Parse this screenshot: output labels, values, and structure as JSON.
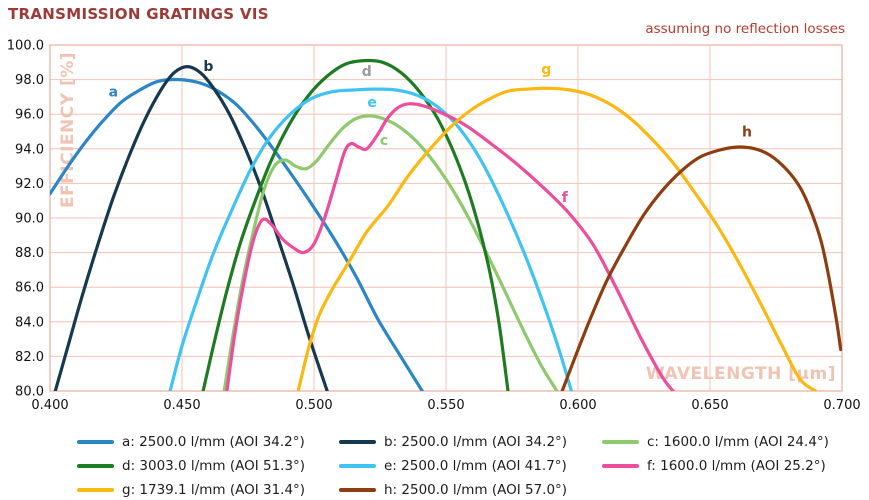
{
  "header": {
    "title": "TRANSMISSION GRATINGS VIS",
    "annotation": "assuming no reflection losses"
  },
  "colors": {
    "title": "#9d3a35",
    "annotation": "#b73c2e",
    "grid": "#f3c2b2",
    "plot_border": "#edb4a1",
    "axis_label": "#f0c3b3",
    "tick_text": "#111111",
    "background": "#ffffff"
  },
  "chart_data": {
    "type": "line",
    "title": "TRANSMISSION GRATINGS VIS",
    "annotation": "assuming no reflection losses",
    "xlabel": "WAVELENGTH [µm]",
    "ylabel": "EFFICIENCY [%]",
    "xlim": [
      0.4,
      0.7
    ],
    "ylim": [
      80.0,
      100.0
    ],
    "x_ticks": [
      0.4,
      0.45,
      0.5,
      0.55,
      0.6,
      0.65,
      0.7
    ],
    "y_ticks": [
      80.0,
      82.0,
      84.0,
      86.0,
      88.0,
      90.0,
      92.0,
      94.0,
      96.0,
      98.0,
      100.0
    ],
    "grid": true,
    "legend_position": "bottom",
    "series": [
      {
        "letter": "a",
        "name": "a: 2500.0 l/mm (AOI 34.2°)",
        "color": "#2b86c5",
        "label_at": [
          0.424,
          97.3
        ],
        "points": [
          [
            0.4,
            91.4
          ],
          [
            0.406,
            92.8
          ],
          [
            0.413,
            94.3
          ],
          [
            0.42,
            95.6
          ],
          [
            0.427,
            96.7
          ],
          [
            0.434,
            97.4
          ],
          [
            0.441,
            97.9
          ],
          [
            0.449,
            98.0
          ],
          [
            0.457,
            97.8
          ],
          [
            0.464,
            97.3
          ],
          [
            0.471,
            96.5
          ],
          [
            0.478,
            95.3
          ],
          [
            0.485,
            93.9
          ],
          [
            0.492,
            92.4
          ],
          [
            0.5,
            90.6
          ],
          [
            0.508,
            88.7
          ],
          [
            0.516,
            86.6
          ],
          [
            0.524,
            84.2
          ],
          [
            0.532,
            82.2
          ],
          [
            0.541,
            80.0
          ]
        ]
      },
      {
        "letter": "b",
        "name": "b: 2500.0 l/mm (AOI 34.2°)",
        "color": "#16394f",
        "label_at": [
          0.46,
          98.8
        ],
        "points": [
          [
            0.402,
            80.0
          ],
          [
            0.407,
            82.7
          ],
          [
            0.412,
            85.4
          ],
          [
            0.418,
            88.4
          ],
          [
            0.424,
            91.2
          ],
          [
            0.43,
            93.6
          ],
          [
            0.436,
            95.7
          ],
          [
            0.442,
            97.4
          ],
          [
            0.447,
            98.4
          ],
          [
            0.452,
            98.75
          ],
          [
            0.457,
            98.4
          ],
          [
            0.462,
            97.5
          ],
          [
            0.468,
            96.0
          ],
          [
            0.474,
            94.0
          ],
          [
            0.48,
            91.7
          ],
          [
            0.486,
            89.0
          ],
          [
            0.492,
            86.2
          ],
          [
            0.498,
            83.2
          ],
          [
            0.505,
            80.0
          ]
        ]
      },
      {
        "letter": "c",
        "name": "c: 1600.0 l/mm (AOI 24.4°)",
        "color": "#8fc96e",
        "label_at": [
          0.5265,
          94.5
        ],
        "points": [
          [
            0.466,
            80.0
          ],
          [
            0.4695,
            83.4
          ],
          [
            0.473,
            86.4
          ],
          [
            0.477,
            89.2
          ],
          [
            0.481,
            91.6
          ],
          [
            0.485,
            93.0
          ],
          [
            0.489,
            93.35
          ],
          [
            0.493,
            93.0
          ],
          [
            0.497,
            92.85
          ],
          [
            0.501,
            93.3
          ],
          [
            0.506,
            94.3
          ],
          [
            0.511,
            95.2
          ],
          [
            0.516,
            95.75
          ],
          [
            0.521,
            95.9
          ],
          [
            0.526,
            95.75
          ],
          [
            0.532,
            95.3
          ],
          [
            0.539,
            94.4
          ],
          [
            0.547,
            92.9
          ],
          [
            0.555,
            91.0
          ],
          [
            0.563,
            88.7
          ],
          [
            0.571,
            86.2
          ],
          [
            0.579,
            83.6
          ],
          [
            0.586,
            81.5
          ],
          [
            0.592,
            80.0
          ]
        ]
      },
      {
        "letter": "d",
        "name": "d: 3003.0 l/mm (AOI 51.3°)",
        "color": "#1d7b22",
        "label_color": "#9a9a9a",
        "label_at": [
          0.52,
          98.5
        ],
        "points": [
          [
            0.458,
            80.0
          ],
          [
            0.4625,
            83.0
          ],
          [
            0.467,
            85.8
          ],
          [
            0.472,
            88.5
          ],
          [
            0.478,
            91.1
          ],
          [
            0.484,
            93.4
          ],
          [
            0.491,
            95.5
          ],
          [
            0.498,
            97.1
          ],
          [
            0.505,
            98.2
          ],
          [
            0.512,
            98.9
          ],
          [
            0.519,
            99.1
          ],
          [
            0.526,
            99.0
          ],
          [
            0.533,
            98.4
          ],
          [
            0.54,
            97.3
          ],
          [
            0.547,
            95.7
          ],
          [
            0.554,
            93.4
          ],
          [
            0.56,
            90.8
          ],
          [
            0.566,
            87.3
          ],
          [
            0.57,
            84.0
          ],
          [
            0.5735,
            80.0
          ]
        ]
      },
      {
        "letter": "e",
        "name": "e: 2500.0 l/mm (AOI 41.7°)",
        "color": "#3fc3f2",
        "label_at": [
          0.522,
          96.7
        ],
        "points": [
          [
            0.4455,
            80.0
          ],
          [
            0.45,
            82.6
          ],
          [
            0.456,
            85.4
          ],
          [
            0.462,
            88.0
          ],
          [
            0.469,
            90.5
          ],
          [
            0.476,
            92.8
          ],
          [
            0.483,
            94.6
          ],
          [
            0.491,
            96.0
          ],
          [
            0.499,
            96.9
          ],
          [
            0.507,
            97.3
          ],
          [
            0.515,
            97.4
          ],
          [
            0.523,
            97.45
          ],
          [
            0.531,
            97.4
          ],
          [
            0.539,
            97.1
          ],
          [
            0.547,
            96.4
          ],
          [
            0.555,
            95.2
          ],
          [
            0.563,
            93.4
          ],
          [
            0.571,
            91.0
          ],
          [
            0.579,
            88.2
          ],
          [
            0.587,
            85.0
          ],
          [
            0.593,
            82.3
          ],
          [
            0.5975,
            80.0
          ]
        ]
      },
      {
        "letter": "f",
        "name": "f: 1600.0 l/mm (AOI 25.2°)",
        "color": "#ec4d9c",
        "label_at": [
          0.595,
          91.2
        ],
        "points": [
          [
            0.467,
            80.0
          ],
          [
            0.47,
            83.3
          ],
          [
            0.4735,
            86.3
          ],
          [
            0.477,
            88.7
          ],
          [
            0.4805,
            89.9
          ],
          [
            0.484,
            89.6
          ],
          [
            0.488,
            88.8
          ],
          [
            0.492,
            88.3
          ],
          [
            0.496,
            88.0
          ],
          [
            0.5,
            88.5
          ],
          [
            0.504,
            90.0
          ],
          [
            0.508,
            92.0
          ],
          [
            0.5115,
            93.8
          ],
          [
            0.514,
            94.3
          ],
          [
            0.517,
            94.1
          ],
          [
            0.52,
            94.0
          ],
          [
            0.524,
            94.8
          ],
          [
            0.528,
            95.8
          ],
          [
            0.532,
            96.4
          ],
          [
            0.536,
            96.6
          ],
          [
            0.541,
            96.5
          ],
          [
            0.548,
            96.1
          ],
          [
            0.557,
            95.4
          ],
          [
            0.567,
            94.3
          ],
          [
            0.577,
            93.1
          ],
          [
            0.588,
            91.6
          ],
          [
            0.597,
            90.2
          ],
          [
            0.606,
            88.4
          ],
          [
            0.615,
            85.8
          ],
          [
            0.624,
            83.0
          ],
          [
            0.632,
            80.8
          ],
          [
            0.636,
            80.0
          ]
        ]
      },
      {
        "letter": "g",
        "name": "g: 1739.1 l/mm (AOI 31.4°)",
        "color": "#fbb712",
        "label_at": [
          0.588,
          98.6
        ],
        "points": [
          [
            0.494,
            80.0
          ],
          [
            0.498,
            82.5
          ],
          [
            0.502,
            84.4
          ],
          [
            0.507,
            85.9
          ],
          [
            0.513,
            87.4
          ],
          [
            0.52,
            89.2
          ],
          [
            0.528,
            90.7
          ],
          [
            0.536,
            92.5
          ],
          [
            0.544,
            94.0
          ],
          [
            0.552,
            95.3
          ],
          [
            0.56,
            96.3
          ],
          [
            0.568,
            97.0
          ],
          [
            0.574,
            97.35
          ],
          [
            0.581,
            97.45
          ],
          [
            0.589,
            97.5
          ],
          [
            0.597,
            97.4
          ],
          [
            0.605,
            97.1
          ],
          [
            0.613,
            96.5
          ],
          [
            0.621,
            95.6
          ],
          [
            0.629,
            94.4
          ],
          [
            0.637,
            93.0
          ],
          [
            0.645,
            91.3
          ],
          [
            0.653,
            89.5
          ],
          [
            0.661,
            87.4
          ],
          [
            0.669,
            85.1
          ],
          [
            0.677,
            82.7
          ],
          [
            0.684,
            80.7
          ],
          [
            0.69,
            80.0
          ]
        ]
      },
      {
        "letter": "h",
        "name": "h: 2500.0 l/mm (AOI 57.0°)",
        "color": "#8e3d10",
        "label_at": [
          0.664,
          95.0
        ],
        "points": [
          [
            0.594,
            80.0
          ],
          [
            0.599,
            82.0
          ],
          [
            0.605,
            84.3
          ],
          [
            0.611,
            86.4
          ],
          [
            0.618,
            88.4
          ],
          [
            0.625,
            90.2
          ],
          [
            0.632,
            91.6
          ],
          [
            0.639,
            92.7
          ],
          [
            0.646,
            93.5
          ],
          [
            0.653,
            93.9
          ],
          [
            0.66,
            94.1
          ],
          [
            0.667,
            94.0
          ],
          [
            0.673,
            93.6
          ],
          [
            0.679,
            92.8
          ],
          [
            0.684,
            91.8
          ],
          [
            0.688,
            90.5
          ],
          [
            0.692,
            88.7
          ],
          [
            0.695,
            86.6
          ],
          [
            0.698,
            84.0
          ],
          [
            0.6995,
            82.4
          ]
        ]
      }
    ]
  }
}
